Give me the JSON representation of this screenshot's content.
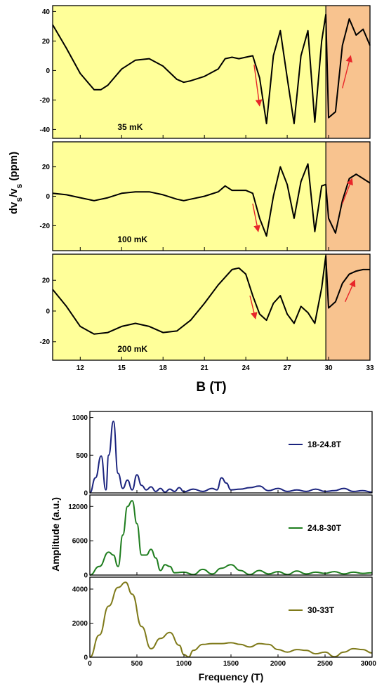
{
  "chart_data": [
    {
      "type": "line",
      "panel": "sound-velocity",
      "xlabel": "B (T)",
      "ylabel": "dv_s/v_s (ppm)",
      "xlim": [
        10,
        33
      ],
      "x_ticks": [
        12,
        15,
        18,
        21,
        24,
        27,
        30,
        33
      ],
      "x_tick_labels": [
        "12",
        "15",
        "18",
        "21",
        "24",
        "27",
        "30",
        "33"
      ],
      "shaded_regions": [
        {
          "from": 10,
          "to": 29.8,
          "color": "#ffff99"
        },
        {
          "from": 29.8,
          "to": 33,
          "color": "#f8c38f"
        }
      ],
      "colors": {
        "trace": "#000000",
        "arrow": "#e8262a"
      },
      "subplots": [
        {
          "label": "35 mK",
          "ylim": [
            -46,
            44
          ],
          "y_ticks": [
            -40,
            -20,
            0,
            20,
            40
          ],
          "y_tick_labels": [
            "-40",
            "-20",
            "0",
            "20",
            "40"
          ],
          "x": [
            10,
            11,
            12,
            13,
            13.5,
            14,
            15,
            16,
            17,
            18,
            19,
            19.5,
            20,
            21,
            22,
            22.5,
            23,
            23.5,
            24,
            24.5,
            25,
            25.5,
            26,
            26.5,
            27,
            27.5,
            28,
            28.5,
            29,
            29.5,
            29.8,
            30,
            30.5,
            31,
            31.5,
            32,
            32.5,
            33
          ],
          "y": [
            31,
            15,
            -2,
            -13,
            -13,
            -10,
            1,
            7,
            8,
            3,
            -6,
            -8,
            -7,
            -4,
            1,
            8,
            9,
            8,
            9,
            10,
            -5,
            -36,
            10,
            27,
            -5,
            -36,
            10,
            27,
            -35,
            20,
            38,
            -32,
            -28,
            17,
            35,
            24,
            28,
            17
          ],
          "arrows": [
            {
              "from": [
                24.6,
                4
              ],
              "to": [
                25.0,
                -24
              ],
              "direction": "down"
            },
            {
              "from": [
                31.0,
                -12
              ],
              "to": [
                31.6,
                10
              ],
              "direction": "up"
            }
          ]
        },
        {
          "label": "100 mK",
          "ylim": [
            -37,
            37
          ],
          "y_ticks": [
            -20,
            0,
            20
          ],
          "y_tick_labels": [
            "-20",
            "0",
            "20"
          ],
          "x": [
            10,
            11,
            12,
            13,
            14,
            15,
            16,
            17,
            18,
            19,
            19.5,
            20,
            21,
            22,
            22.5,
            23,
            24,
            24.5,
            25,
            25.5,
            26,
            26.5,
            27,
            27.5,
            28,
            28.5,
            29,
            29.5,
            29.8,
            30,
            30.5,
            31,
            31.5,
            32,
            32.5,
            33
          ],
          "y": [
            2,
            1,
            -1,
            -3,
            -1,
            2,
            3,
            3,
            1,
            -2,
            -3,
            -2,
            0,
            3,
            7,
            4,
            4,
            2,
            -15,
            -27,
            0,
            20,
            8,
            -15,
            10,
            22,
            -24,
            7,
            8,
            -15,
            -25,
            -3,
            12,
            15,
            12,
            9
          ],
          "arrows": [
            {
              "from": [
                24.5,
                -5
              ],
              "to": [
                24.9,
                -24
              ],
              "direction": "down"
            },
            {
              "from": [
                31.0,
                -5
              ],
              "to": [
                31.7,
                12
              ],
              "direction": "up"
            }
          ]
        },
        {
          "label": "200 mK",
          "ylim": [
            -32,
            37
          ],
          "y_ticks": [
            -20,
            0,
            20
          ],
          "y_tick_labels": [
            "-20",
            "0",
            "20"
          ],
          "x": [
            10,
            11,
            12,
            13,
            14,
            15,
            16,
            17,
            18,
            19,
            20,
            21,
            22,
            23,
            23.5,
            24,
            24.5,
            25,
            25.5,
            26,
            26.5,
            27,
            27.5,
            28,
            28.5,
            29,
            29.5,
            29.8,
            30,
            30.5,
            31,
            31.5,
            32,
            32.5,
            33
          ],
          "y": [
            14,
            3,
            -10,
            -15,
            -14,
            -10,
            -8,
            -10,
            -14,
            -13,
            -6,
            5,
            17,
            27,
            28,
            24,
            10,
            -2,
            -6,
            5,
            10,
            -2,
            -8,
            3,
            -1,
            -8,
            15,
            36,
            2,
            6,
            18,
            24,
            26,
            27,
            27
          ],
          "arrows": [
            {
              "from": [
                24.3,
                10
              ],
              "to": [
                24.7,
                -5
              ],
              "direction": "down"
            },
            {
              "from": [
                31.2,
                6
              ],
              "to": [
                31.9,
                20
              ],
              "direction": "up"
            }
          ]
        }
      ]
    },
    {
      "type": "line",
      "panel": "fft",
      "xlabel": "Frequency (T)",
      "ylabel": "Amplitude (a.u.)",
      "xlim": [
        0,
        3000
      ],
      "x_ticks": [
        0,
        500,
        1000,
        1500,
        2000,
        2500,
        3000
      ],
      "x_tick_labels": [
        "0",
        "500",
        "1000",
        "1500",
        "2000",
        "2500",
        "3000"
      ],
      "subplots": [
        {
          "series_name": "18-24.8T",
          "color": "#1a237e",
          "ylim": [
            0,
            1080
          ],
          "y_ticks": [
            0,
            500,
            1000
          ],
          "y_tick_labels": [
            "0",
            "500",
            "1000"
          ],
          "x": [
            0,
            60,
            120,
            170,
            200,
            250,
            300,
            350,
            400,
            450,
            500,
            550,
            600,
            650,
            700,
            750,
            800,
            850,
            900,
            950,
            1000,
            1100,
            1200,
            1300,
            1350,
            1400,
            1450,
            1500,
            1600,
            1700,
            1800,
            1900,
            2000,
            2100,
            2200,
            2300,
            2400,
            2500,
            2600,
            2700,
            2800,
            2900,
            3000
          ],
          "y": [
            0,
            200,
            490,
            40,
            500,
            950,
            260,
            60,
            170,
            40,
            240,
            100,
            40,
            80,
            20,
            60,
            10,
            50,
            20,
            70,
            15,
            50,
            20,
            60,
            40,
            200,
            130,
            40,
            50,
            70,
            90,
            30,
            60,
            20,
            40,
            20,
            50,
            20,
            30,
            60,
            20,
            30,
            10
          ]
        },
        {
          "series_name": "24.8-30T",
          "color": "#1e7d1e",
          "ylim": [
            0,
            14000
          ],
          "y_ticks": [
            0,
            6000,
            12000
          ],
          "y_tick_labels": [
            "0",
            "6000",
            "12000"
          ],
          "x": [
            0,
            100,
            200,
            250,
            300,
            350,
            400,
            450,
            500,
            550,
            600,
            650,
            700,
            750,
            800,
            850,
            900,
            1000,
            1100,
            1200,
            1300,
            1400,
            1500,
            1600,
            1700,
            1800,
            1900,
            2000,
            2100,
            2200,
            2300,
            2400,
            2500,
            2600,
            2700,
            2800,
            2900,
            3000
          ],
          "y": [
            0,
            1500,
            4000,
            3500,
            1500,
            7000,
            12000,
            13000,
            9000,
            3500,
            3500,
            4500,
            3000,
            800,
            1800,
            1500,
            400,
            500,
            100,
            1000,
            200,
            1200,
            1800,
            800,
            100,
            800,
            200,
            600,
            100,
            700,
            200,
            500,
            300,
            600,
            200,
            500,
            300,
            400
          ]
        },
        {
          "series_name": "30-33T",
          "color": "#7f7a1a",
          "ylim": [
            0,
            4700
          ],
          "y_ticks": [
            0,
            2000,
            4000
          ],
          "y_tick_labels": [
            "0",
            "2000",
            "4000"
          ],
          "x": [
            0,
            100,
            200,
            300,
            380,
            450,
            550,
            650,
            750,
            850,
            950,
            1000,
            1050,
            1100,
            1200,
            1300,
            1400,
            1500,
            1600,
            1700,
            1800,
            1900,
            2000,
            2100,
            2200,
            2300,
            2400,
            2500,
            2600,
            2700,
            2800,
            2900,
            3000
          ],
          "y": [
            0,
            1300,
            3000,
            4100,
            4400,
            3700,
            1800,
            500,
            1100,
            1450,
            700,
            150,
            20,
            400,
            750,
            800,
            800,
            850,
            750,
            600,
            800,
            750,
            450,
            300,
            450,
            400,
            200,
            300,
            30,
            300,
            500,
            450,
            250
          ]
        }
      ]
    }
  ]
}
